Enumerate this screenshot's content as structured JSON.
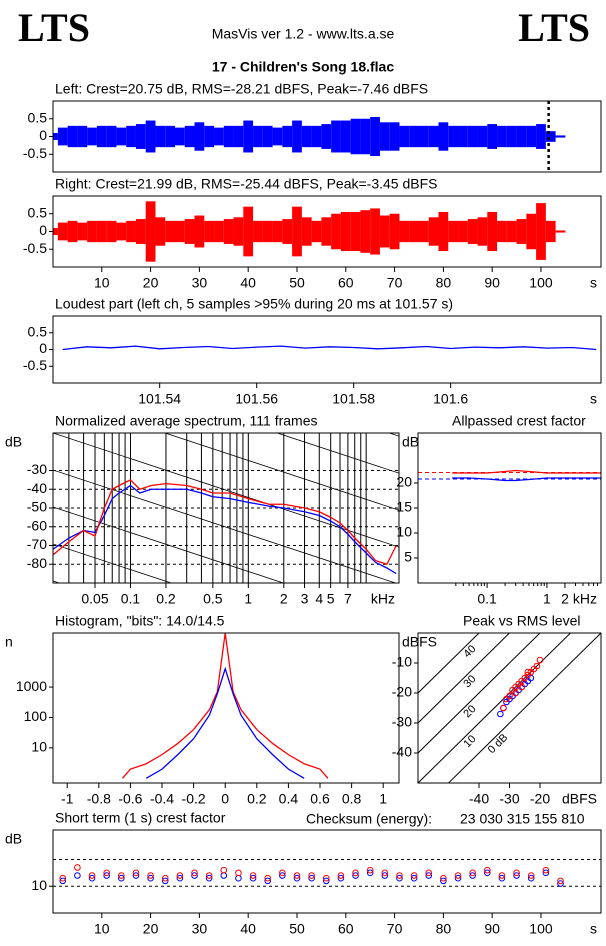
{
  "header": {
    "left_logo": "LTS",
    "app": "MasVis ver 1.2 - www.lts.a.se",
    "right_logo": "LTS",
    "file": "17 - Children's Song 18.flac"
  },
  "checksum": {
    "label": "Checksum (energy):",
    "value": "23 030 315 155 810"
  },
  "chart_data": [
    {
      "type": "waveform",
      "title": "Left: Crest=20.75 dB, RMS=-28.21 dBFS, Peak=-7.46 dBFS",
      "xlim": [
        0,
        112.3
      ],
      "ylim": [
        -1,
        1
      ],
      "yticks": [
        0.5,
        0,
        -0.5
      ],
      "marker_x": 101.57,
      "x": [
        0,
        2,
        4,
        6,
        8,
        10,
        12,
        14,
        16,
        18,
        20,
        22,
        24,
        26,
        28,
        30,
        32,
        34,
        36,
        38,
        40,
        42,
        44,
        46,
        48,
        50,
        52,
        54,
        56,
        58,
        60,
        62,
        64,
        66,
        68,
        70,
        72,
        74,
        76,
        78,
        80,
        82,
        84,
        86,
        88,
        90,
        92,
        94,
        96,
        98,
        100,
        102,
        104
      ],
      "series": [
        {
          "name": "Left",
          "color": "#0000ff",
          "values": [
            0.1,
            0.25,
            0.3,
            0.3,
            0.25,
            0.3,
            0.3,
            0.25,
            0.3,
            0.35,
            0.45,
            0.3,
            0.3,
            0.25,
            0.3,
            0.4,
            0.3,
            0.25,
            0.3,
            0.3,
            0.45,
            0.3,
            0.3,
            0.25,
            0.3,
            0.45,
            0.3,
            0.3,
            0.35,
            0.45,
            0.45,
            0.5,
            0.5,
            0.55,
            0.4,
            0.4,
            0.3,
            0.3,
            0.3,
            0.3,
            0.4,
            0.3,
            0.3,
            0.3,
            0.3,
            0.35,
            0.3,
            0.3,
            0.3,
            0.3,
            0.35,
            0.15,
            0.03
          ]
        }
      ]
    },
    {
      "type": "waveform",
      "title": "Right: Crest=21.99 dB, RMS=-25.44 dBFS, Peak=-3.45 dBFS",
      "xlim": [
        0,
        112.3
      ],
      "ylim": [
        -1,
        1
      ],
      "yticks": [
        0.5,
        0,
        -0.5
      ],
      "xticks": [
        10,
        20,
        30,
        40,
        50,
        60,
        70,
        80,
        90,
        100
      ],
      "xlabel": "s",
      "x": [
        0,
        2,
        4,
        6,
        8,
        10,
        12,
        14,
        16,
        18,
        20,
        22,
        24,
        26,
        28,
        30,
        32,
        34,
        36,
        38,
        40,
        42,
        44,
        46,
        48,
        50,
        52,
        54,
        56,
        58,
        60,
        62,
        64,
        66,
        68,
        70,
        72,
        74,
        76,
        78,
        80,
        82,
        84,
        86,
        88,
        90,
        92,
        94,
        96,
        98,
        100,
        102,
        104
      ],
      "series": [
        {
          "name": "Right",
          "color": "#ff0000",
          "values": [
            0.1,
            0.25,
            0.3,
            0.25,
            0.3,
            0.3,
            0.3,
            0.25,
            0.3,
            0.35,
            0.85,
            0.4,
            0.3,
            0.3,
            0.35,
            0.45,
            0.3,
            0.3,
            0.35,
            0.4,
            0.7,
            0.3,
            0.3,
            0.3,
            0.35,
            0.7,
            0.4,
            0.3,
            0.4,
            0.5,
            0.55,
            0.55,
            0.6,
            0.65,
            0.45,
            0.5,
            0.3,
            0.3,
            0.3,
            0.4,
            0.55,
            0.3,
            0.3,
            0.35,
            0.4,
            0.55,
            0.3,
            0.3,
            0.35,
            0.5,
            0.8,
            0.3,
            0.03
          ]
        }
      ]
    },
    {
      "type": "line",
      "title": "Loudest part (left  ch, 5 samples >95% during 20 ms at 101.57 s)",
      "xlim": [
        101.518,
        101.631
      ],
      "ylim": [
        -1,
        1
      ],
      "yticks": [
        0.5,
        0,
        -0.5
      ],
      "xticks": [
        101.54,
        101.56,
        101.58,
        101.6
      ],
      "xlabel": "s",
      "x": [
        101.52,
        101.525,
        101.53,
        101.535,
        101.54,
        101.545,
        101.55,
        101.555,
        101.56,
        101.565,
        101.57,
        101.575,
        101.58,
        101.585,
        101.59,
        101.595,
        101.6,
        101.605,
        101.61,
        101.615,
        101.62,
        101.625,
        101.63
      ],
      "series": [
        {
          "name": "Left",
          "color": "#0000ff",
          "values": [
            0,
            0.08,
            0.05,
            0.1,
            0.02,
            0.06,
            0.09,
            0.03,
            0.07,
            0.1,
            0.04,
            0.08,
            0.06,
            0.02,
            0.05,
            0.09,
            0.03,
            0.07,
            0.05,
            0.08,
            0.04,
            0.06,
            0
          ]
        }
      ]
    },
    {
      "type": "line",
      "title": "Normalized average spectrum, 111 frames",
      "xscale": "log",
      "grid": true,
      "diagonals": true,
      "xlim": [
        0.022,
        19
      ],
      "ylim": [
        -90,
        -10
      ],
      "yticks": [
        -30,
        -40,
        -50,
        -60,
        -70,
        -80
      ],
      "ylabel": "dB",
      "xlabel": "kHz",
      "xticks": [
        0.05,
        0.1,
        0.2,
        0.5,
        1,
        2,
        3,
        4,
        5,
        7
      ],
      "xminor": [
        0.03,
        0.04,
        0.06,
        0.07,
        0.08,
        0.09,
        0.3,
        0.4,
        0.6,
        0.7,
        0.8,
        0.9,
        6,
        8,
        9,
        10,
        20
      ],
      "x": [
        0.022,
        0.03,
        0.04,
        0.05,
        0.06,
        0.07,
        0.08,
        0.1,
        0.12,
        0.15,
        0.2,
        0.3,
        0.4,
        0.5,
        0.7,
        1,
        1.5,
        2,
        3,
        4,
        5,
        6,
        7,
        8,
        10,
        12,
        15,
        18
      ],
      "series": [
        {
          "name": "Left",
          "color": "#0000ff",
          "values": [
            -72,
            -66,
            -62,
            -63,
            -54,
            -45,
            -42,
            -38,
            -42,
            -40,
            -40,
            -40,
            -42,
            -44,
            -45,
            -47,
            -49,
            -50,
            -52,
            -54,
            -57,
            -60,
            -64,
            -68,
            -74,
            -79,
            -82,
            -85
          ]
        },
        {
          "name": "Right",
          "color": "#ff0000",
          "values": [
            -75,
            -68,
            -62,
            -65,
            -50,
            -40,
            -38,
            -35,
            -40,
            -38,
            -37,
            -38,
            -40,
            -42,
            -42,
            -45,
            -48,
            -48,
            -50,
            -52,
            -55,
            -58,
            -62,
            -66,
            -72,
            -78,
            -80,
            -70
          ]
        }
      ]
    },
    {
      "type": "line",
      "title": "Allpassed crest factor",
      "xscale": "log",
      "xlim": [
        0.007,
        8
      ],
      "ylim": [
        0,
        30
      ],
      "yticks": [
        20,
        15,
        10,
        5
      ],
      "ylabel": "dB",
      "xlabel": "kHz",
      "xticks": [
        0.1,
        1,
        2
      ],
      "xminor": [
        0.03,
        0.04,
        0.05,
        0.06,
        0.07,
        0.08,
        0.09,
        0.2,
        0.3,
        0.4,
        0.5,
        0.6,
        0.7,
        0.8,
        0.9,
        3,
        4,
        5,
        6,
        7
      ],
      "x": [
        0.026,
        0.05,
        0.1,
        0.2,
        0.3,
        0.5,
        1,
        2,
        5,
        8
      ],
      "series": [
        {
          "name": "Left",
          "color": "#0000ff",
          "mean": 20.8,
          "values": [
            21,
            21,
            20.8,
            20.5,
            20.5,
            20.7,
            21,
            21,
            21,
            21
          ]
        },
        {
          "name": "Right",
          "color": "#ff0000",
          "mean": 22.1,
          "values": [
            22,
            22,
            22,
            22.3,
            22.5,
            22.3,
            22,
            22,
            22,
            22
          ]
        }
      ]
    },
    {
      "type": "line",
      "title": "Histogram, \"bits\": 14.0/14.5",
      "yscale": "log",
      "xlim": [
        -1.09,
        1.1
      ],
      "ylim": [
        0.7,
        60000
      ],
      "yticks": [
        1000,
        100,
        10
      ],
      "ylabel": "n",
      "xticks": [
        -1,
        -0.8,
        -0.6,
        -0.4,
        -0.2,
        0,
        0.2,
        0.4,
        0.6,
        0.8,
        1
      ],
      "x": [
        -0.65,
        -0.6,
        -0.5,
        -0.4,
        -0.3,
        -0.2,
        -0.1,
        -0.05,
        0,
        0.05,
        0.1,
        0.2,
        0.3,
        0.4,
        0.5,
        0.6,
        0.65
      ],
      "series": [
        {
          "name": "Right",
          "color": "#ff0000",
          "values": [
            1,
            2,
            3,
            6,
            14,
            40,
            180,
            700,
            60000,
            700,
            180,
            40,
            14,
            6,
            3,
            2,
            1
          ]
        },
        {
          "name": "Left",
          "color": "#0000ff",
          "values": [
            null,
            null,
            1,
            2,
            6,
            20,
            120,
            600,
            4000,
            600,
            120,
            20,
            6,
            2,
            1,
            null,
            null
          ]
        }
      ]
    },
    {
      "type": "scatter",
      "title": "Peak vs RMS level",
      "xlim": [
        -60,
        0
      ],
      "ylim": [
        -50,
        0
      ],
      "yticks": [
        -10,
        -20,
        -30,
        -40
      ],
      "xticks": [
        -40,
        -30,
        -20
      ],
      "ylabel": "dBFS",
      "xlabel": "dBFS",
      "crest_lines": [
        {
          "value": 0,
          "label": "0 dB"
        },
        {
          "value": 10,
          "label": "10"
        },
        {
          "value": 20,
          "label": "20"
        },
        {
          "value": 30,
          "label": "30"
        },
        {
          "value": 40,
          "label": "40"
        }
      ],
      "series": [
        {
          "name": "Left",
          "color": "#0000ff",
          "x": [
            -33,
            -32,
            -31,
            -30,
            -29,
            -28,
            -27,
            -26,
            -25,
            -24,
            -23
          ],
          "values": [
            -27,
            -25,
            -23,
            -22,
            -21,
            -20,
            -19,
            -18,
            -17,
            -16,
            -15
          ]
        },
        {
          "name": "Right",
          "color": "#ff0000",
          "x": [
            -32,
            -31,
            -30,
            -29,
            -28,
            -27,
            -26,
            -25,
            -24,
            -23,
            -22,
            -21,
            -20,
            -28,
            -26,
            -24
          ],
          "values": [
            -25,
            -22,
            -21,
            -19,
            -18,
            -17,
            -16,
            -15,
            -14,
            -13,
            -12,
            -11,
            -9,
            -20,
            -18,
            -13
          ]
        }
      ]
    },
    {
      "type": "scatter",
      "title": "Short term (1 s) crest factor",
      "xlim": [
        0,
        112.3
      ],
      "ylim": [
        0,
        31
      ],
      "yticks": [
        10
      ],
      "ylabel": "dB",
      "reference_lines": [
        10,
        20
      ],
      "xticks": [
        10,
        20,
        30,
        40,
        50,
        60,
        70,
        80,
        90,
        100
      ],
      "xlabel": "s",
      "x": [
        2,
        5,
        8,
        11,
        14,
        17,
        20,
        23,
        26,
        29,
        32,
        35,
        38,
        41,
        44,
        47,
        50,
        53,
        56,
        59,
        62,
        65,
        68,
        71,
        74,
        77,
        80,
        83,
        86,
        89,
        92,
        95,
        98,
        101,
        104
      ],
      "series": [
        {
          "name": "Left",
          "color": "#0000ff",
          "values": [
            12,
            14,
            13,
            14,
            13,
            14,
            13,
            12,
            13,
            14,
            13,
            14,
            13,
            13,
            12,
            14,
            13,
            13,
            12,
            13,
            14,
            15,
            14,
            13,
            13,
            14,
            12,
            13,
            14,
            15,
            13,
            14,
            13,
            15,
            11
          ]
        },
        {
          "name": "Right",
          "color": "#ff0000",
          "values": [
            13,
            17,
            14,
            15,
            14,
            15,
            14,
            13,
            14,
            15,
            14,
            16,
            15,
            14,
            13,
            15,
            14,
            14,
            13,
            14,
            15,
            16,
            15,
            14,
            14,
            15,
            13,
            14,
            15,
            16,
            14,
            15,
            14,
            16,
            12
          ]
        }
      ]
    }
  ]
}
